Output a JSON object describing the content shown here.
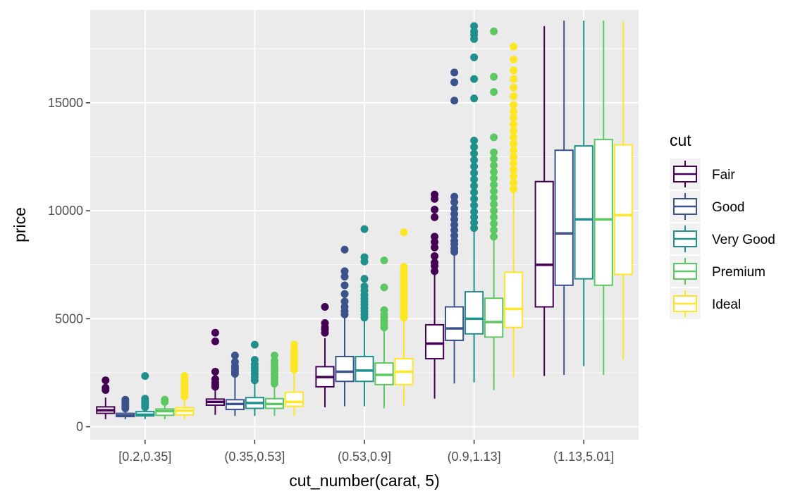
{
  "chart_data": {
    "type": "boxplot",
    "title": "",
    "xlabel": "cut_number(carat, 5)",
    "ylabel": "price",
    "categories": [
      "[0.2,0.35]",
      "(0.35,0.53]",
      "(0.53,0.9]",
      "(0.9,1.13]",
      "(1.13,5.01]"
    ],
    "ylim": [
      -600,
      19300
    ],
    "yticks": [
      0,
      5000,
      10000,
      15000
    ],
    "grid": true,
    "legend": {
      "title": "cut",
      "position": "right",
      "entries": [
        "Fair",
        "Good",
        "Very Good",
        "Premium",
        "Ideal"
      ]
    },
    "series": [
      {
        "name": "Fair",
        "color": "#440154",
        "boxes": [
          {
            "lower": 350,
            "q1": 620,
            "median": 760,
            "q3": 920,
            "upper": 1350,
            "outliers": [
              1700,
              1800,
              2150
            ]
          },
          {
            "lower": 550,
            "q1": 1000,
            "median": 1150,
            "q3": 1280,
            "upper": 1700,
            "outliers": [
              1850,
              1950,
              2050,
              2200,
              2550,
              3950,
              4350
            ]
          },
          {
            "lower": 900,
            "q1": 1850,
            "median": 2300,
            "q3": 2780,
            "upper": 4100,
            "outliers": [
              4350,
              4500,
              4600,
              4800,
              5550
            ]
          },
          {
            "lower": 1300,
            "q1": 3150,
            "median": 3850,
            "q3": 4720,
            "upper": 7050,
            "outliers": [
              7200,
              7450,
              7600,
              7900,
              8300,
              8550,
              8800,
              9700,
              10050,
              10550,
              10750
            ]
          },
          {
            "lower": 2350,
            "q1": 5550,
            "median": 7500,
            "q3": 11350,
            "upper": 18550,
            "outliers": []
          }
        ]
      },
      {
        "name": "Good",
        "color": "#3b528b",
        "boxes": [
          {
            "lower": 350,
            "q1": 470,
            "median": 520,
            "q3": 620,
            "upper": 800,
            "outliers": [
              850,
              950,
              1050,
              1150,
              1250
            ]
          },
          {
            "lower": 500,
            "q1": 800,
            "median": 1050,
            "q3": 1250,
            "upper": 2300,
            "outliers": [
              2450,
              2550,
              2700,
              2800,
              3000,
              3300
            ]
          },
          {
            "lower": 950,
            "q1": 2100,
            "median": 2550,
            "q3": 3250,
            "upper": 5050,
            "outliers": [
              5200,
              5350,
              5550,
              5800,
              6150,
              6550,
              6950,
              7200,
              8200
            ]
          },
          {
            "lower": 2000,
            "q1": 4000,
            "median": 4550,
            "q3": 5550,
            "upper": 7950,
            "outliers": [
              8100,
              8250,
              8450,
              8600,
              8850,
              9100,
              9350,
              9600,
              9850,
              10100,
              10400,
              10650,
              15100,
              15950,
              16400
            ]
          },
          {
            "lower": 2400,
            "q1": 6550,
            "median": 8950,
            "q3": 12800,
            "upper": 18800,
            "outliers": []
          }
        ]
      },
      {
        "name": "Very Good",
        "color": "#21908c",
        "boxes": [
          {
            "lower": 350,
            "q1": 500,
            "median": 560,
            "q3": 700,
            "upper": 850,
            "outliers": [
              900,
              1000,
              1100,
              1200,
              1300,
              2350
            ]
          },
          {
            "lower": 500,
            "q1": 850,
            "median": 1100,
            "q3": 1350,
            "upper": 2000,
            "outliers": [
              2150,
              2300,
              2450,
              2600,
              2750,
              2900,
              3100,
              3800
            ]
          },
          {
            "lower": 950,
            "q1": 2100,
            "median": 2600,
            "q3": 3250,
            "upper": 4950,
            "outliers": [
              5050,
              5200,
              5350,
              5500,
              5650,
              5800,
              5950,
              6100,
              6300,
              6500,
              6850,
              7650,
              7850,
              9150
            ]
          },
          {
            "lower": 2050,
            "q1": 4300,
            "median": 5000,
            "q3": 6250,
            "upper": 9050,
            "outliers": [
              9200,
              9450,
              9700,
              9950,
              10250,
              10550,
              10850,
              11150,
              11450,
              11750,
              12050,
              12350,
              12650,
              12950,
              13250,
              15200,
              16100,
              17100,
              17950,
              18150,
              18300,
              18550
            ]
          },
          {
            "lower": 2800,
            "q1": 6850,
            "median": 9600,
            "q3": 13000,
            "upper": 18800,
            "outliers": []
          }
        ]
      },
      {
        "name": "Premium",
        "color": "#5dc863",
        "boxes": [
          {
            "lower": 350,
            "q1": 530,
            "median": 720,
            "q3": 820,
            "upper": 1050,
            "outliers": [
              1150,
              1250
            ]
          },
          {
            "lower": 500,
            "q1": 850,
            "median": 1050,
            "q3": 1300,
            "upper": 1900,
            "outliers": [
              2000,
              2150,
              2300,
              2450,
              2600,
              2750,
              2900,
              3050,
              3300
            ]
          },
          {
            "lower": 850,
            "q1": 1950,
            "median": 2400,
            "q3": 2950,
            "upper": 4450,
            "outliers": [
              4600,
              4750,
              4900,
              5050,
              5200,
              5400,
              6450,
              7700
            ]
          },
          {
            "lower": 1700,
            "q1": 4150,
            "median": 4850,
            "q3": 5950,
            "upper": 8650,
            "outliers": [
              8800,
              9100,
              9400,
              9700,
              10000,
              10300,
              10600,
              10900,
              11200,
              11500,
              11800,
              12100,
              12400,
              12700,
              13400,
              15500,
              16200,
              18300
            ]
          },
          {
            "lower": 2400,
            "q1": 6550,
            "median": 9600,
            "q3": 13300,
            "upper": 18800,
            "outliers": []
          }
        ]
      },
      {
        "name": "Ideal",
        "color": "#fde725",
        "boxes": [
          {
            "lower": 350,
            "q1": 550,
            "median": 740,
            "q3": 880,
            "upper": 1250,
            "outliers": [
              1400,
              1550,
              1700,
              1850,
              2000,
              2150,
              2350
            ]
          },
          {
            "lower": 500,
            "q1": 950,
            "median": 1150,
            "q3": 1600,
            "upper": 2550,
            "outliers": [
              2650,
              2800,
              2950,
              3100,
              3250,
              3400,
              3550,
              3800
            ]
          },
          {
            "lower": 1000,
            "q1": 1950,
            "median": 2550,
            "q3": 3150,
            "upper": 4900,
            "outliers": [
              5050,
              5200,
              5350,
              5500,
              5650,
              5800,
              5950,
              6100,
              6250,
              6400,
              6550,
              6700,
              6850,
              7000,
              7200,
              7400,
              9000
            ]
          },
          {
            "lower": 2300,
            "q1": 4600,
            "median": 5450,
            "q3": 7150,
            "upper": 10850,
            "outliers": [
              11000,
              11300,
              11600,
              11900,
              12200,
              12500,
              12800,
              13100,
              13400,
              13700,
              14000,
              14300,
              14600,
              14900,
              15300,
              15700,
              16100,
              16500,
              17000,
              17600
            ]
          },
          {
            "lower": 3100,
            "q1": 7050,
            "median": 9800,
            "q3": 13050,
            "upper": 18750,
            "outliers": []
          }
        ]
      }
    ]
  }
}
